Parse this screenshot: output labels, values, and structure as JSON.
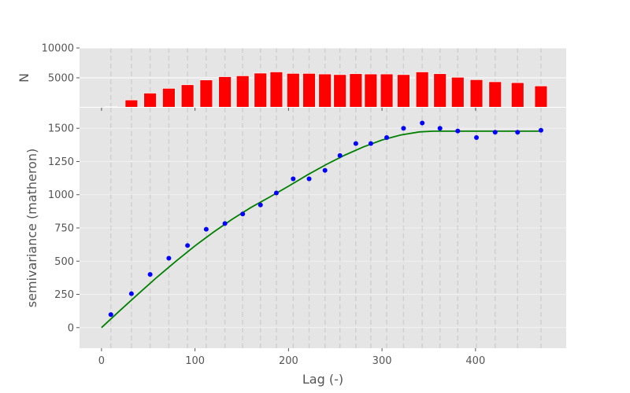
{
  "chart_data": [
    {
      "type": "bar",
      "role": "histogram",
      "xlabel": "",
      "ylabel": "N",
      "xlim": [
        -23.5,
        497
      ],
      "ylim": [
        0,
        10000
      ],
      "yticks": [
        10000,
        5000
      ],
      "grid": true,
      "bar_color": "#ff0000",
      "x": [
        10,
        32,
        52,
        72,
        92,
        112,
        132,
        151,
        170,
        187,
        205,
        222,
        239,
        255,
        272,
        288,
        305,
        323,
        343,
        362,
        381,
        401,
        421,
        445,
        470
      ],
      "values": [
        150,
        1300,
        2450,
        3250,
        3850,
        4650,
        5200,
        5350,
        5800,
        6000,
        5750,
        5750,
        5650,
        5550,
        5700,
        5650,
        5650,
        5550,
        6000,
        5700,
        5100,
        4700,
        4350,
        4200,
        3650
      ]
    },
    {
      "type": "scatter",
      "role": "variogram",
      "xlabel": "Lag (-)",
      "ylabel": "semivariance (matheron)",
      "xlim": [
        -23.5,
        497
      ],
      "ylim": [
        -155,
        1655
      ],
      "xticks": [
        0,
        100,
        200,
        300,
        400
      ],
      "yticks": [
        0,
        250,
        500,
        750,
        1000,
        1250,
        1500
      ],
      "grid": true,
      "series": [
        {
          "kind": "points",
          "color": "#0000ff",
          "x": [
            10,
            32,
            52,
            72,
            92,
            112,
            132,
            151,
            170,
            187,
            205,
            222,
            239,
            255,
            272,
            288,
            305,
            323,
            343,
            362,
            381,
            401,
            421,
            445,
            470
          ],
          "y": [
            98,
            255,
            400,
            522,
            618,
            740,
            783,
            855,
            923,
            1013,
            1120,
            1120,
            1183,
            1295,
            1385,
            1385,
            1430,
            1500,
            1540,
            1500,
            1480,
            1430,
            1470,
            1470,
            1485
          ]
        },
        {
          "kind": "model",
          "color": "#008000",
          "x": [
            0,
            20,
            40,
            60,
            80,
            100,
            120,
            140,
            160,
            180,
            200,
            220,
            240,
            260,
            280,
            300,
            320,
            340,
            355,
            380,
            420,
            470
          ],
          "y": [
            0,
            130,
            258,
            383,
            502,
            615,
            720,
            817,
            905,
            983,
            1064,
            1148,
            1226,
            1297,
            1360,
            1412,
            1450,
            1473,
            1478,
            1478,
            1478,
            1478
          ]
        }
      ]
    }
  ]
}
